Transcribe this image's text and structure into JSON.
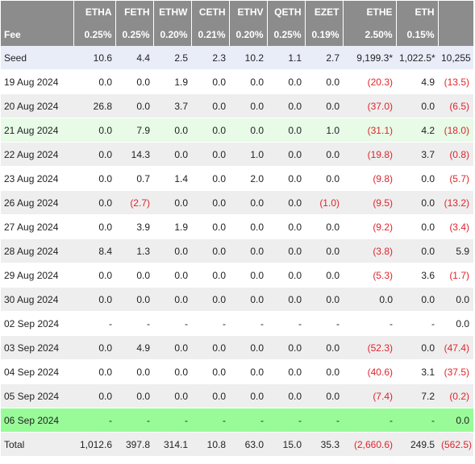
{
  "columns": [
    "",
    "ETHA",
    "FETH",
    "ETHW",
    "CETH",
    "ETHV",
    "QETH",
    "EZET",
    "ETHE",
    "ETH",
    ""
  ],
  "fee": [
    "Fee",
    "0.25%",
    "0.25%",
    "0.20%",
    "0.21%",
    "0.20%",
    "0.25%",
    "0.19%",
    "2.50%",
    "0.15%",
    ""
  ],
  "rows": [
    {
      "cells": [
        "Seed",
        "10.6",
        "4.4",
        "2.5",
        "2.3",
        "10.2",
        "1.1",
        "2.7",
        "9,199.3*",
        "1,022.5*",
        "10,255"
      ],
      "neg": [],
      "style": "seed"
    },
    {
      "cells": [
        "19 Aug 2024",
        "0.0",
        "0.0",
        "1.9",
        "0.0",
        "0.0",
        "0.0",
        "0.0",
        "(20.3)",
        "4.9",
        "(13.5)"
      ],
      "neg": [
        8,
        10
      ],
      "style": "odd"
    },
    {
      "cells": [
        "20 Aug 2024",
        "26.8",
        "0.0",
        "3.7",
        "0.0",
        "0.0",
        "0.0",
        "0.0",
        "(37.0)",
        "0.0",
        "(6.5)"
      ],
      "neg": [
        8,
        10
      ],
      "style": "even"
    },
    {
      "cells": [
        "21 Aug 2024",
        "0.0",
        "7.9",
        "0.0",
        "0.0",
        "0.0",
        "0.0",
        "1.0",
        "(31.1)",
        "4.2",
        "(18.0)"
      ],
      "neg": [
        8,
        10
      ],
      "style": "hl-light"
    },
    {
      "cells": [
        "22 Aug 2024",
        "0.0",
        "14.3",
        "0.0",
        "0.0",
        "1.0",
        "0.0",
        "0.0",
        "(19.8)",
        "3.7",
        "(0.8)"
      ],
      "neg": [
        8,
        10
      ],
      "style": "even"
    },
    {
      "cells": [
        "23 Aug 2024",
        "0.0",
        "0.7",
        "1.4",
        "0.0",
        "2.0",
        "0.0",
        "0.0",
        "(9.8)",
        "0.0",
        "(5.7)"
      ],
      "neg": [
        8,
        10
      ],
      "style": "odd"
    },
    {
      "cells": [
        "26 Aug 2024",
        "0.0",
        "(2.7)",
        "0.0",
        "0.0",
        "0.0",
        "0.0",
        "(1.0)",
        "(9.5)",
        "0.0",
        "(13.2)"
      ],
      "neg": [
        2,
        7,
        8,
        10
      ],
      "style": "even"
    },
    {
      "cells": [
        "27 Aug 2024",
        "0.0",
        "3.9",
        "1.9",
        "0.0",
        "0.0",
        "0.0",
        "0.0",
        "(9.2)",
        "0.0",
        "(3.4)"
      ],
      "neg": [
        8,
        10
      ],
      "style": "odd"
    },
    {
      "cells": [
        "28 Aug 2024",
        "8.4",
        "1.3",
        "0.0",
        "0.0",
        "0.0",
        "0.0",
        "0.0",
        "(3.8)",
        "0.0",
        "5.9"
      ],
      "neg": [
        8
      ],
      "style": "even"
    },
    {
      "cells": [
        "29 Aug 2024",
        "0.0",
        "0.0",
        "0.0",
        "0.0",
        "0.0",
        "0.0",
        "0.0",
        "(5.3)",
        "3.6",
        "(1.7)"
      ],
      "neg": [
        8,
        10
      ],
      "style": "odd"
    },
    {
      "cells": [
        "30 Aug 2024",
        "0.0",
        "0.0",
        "0.0",
        "0.0",
        "0.0",
        "0.0",
        "0.0",
        "0.0",
        "0.0",
        "0.0"
      ],
      "neg": [],
      "style": "even"
    },
    {
      "cells": [
        "02 Sep 2024",
        "-",
        "-",
        "-",
        "-",
        "-",
        "-",
        "-",
        "-",
        "-",
        "0.0"
      ],
      "neg": [],
      "style": "odd"
    },
    {
      "cells": [
        "03 Sep 2024",
        "0.0",
        "4.9",
        "0.0",
        "0.0",
        "0.0",
        "0.0",
        "0.0",
        "(52.3)",
        "0.0",
        "(47.4)"
      ],
      "neg": [
        8,
        10
      ],
      "style": "even"
    },
    {
      "cells": [
        "04 Sep 2024",
        "0.0",
        "0.0",
        "0.0",
        "0.0",
        "0.0",
        "0.0",
        "0.0",
        "(40.6)",
        "3.1",
        "(37.5)"
      ],
      "neg": [
        8,
        10
      ],
      "style": "odd"
    },
    {
      "cells": [
        "05 Sep 2024",
        "0.0",
        "0.0",
        "0.0",
        "0.0",
        "0.0",
        "0.0",
        "0.0",
        "(7.4)",
        "7.2",
        "(0.2)"
      ],
      "neg": [
        8,
        10
      ],
      "style": "even"
    },
    {
      "cells": [
        "06 Sep 2024",
        "-",
        "-",
        "-",
        "-",
        "-",
        "-",
        "-",
        "-",
        "-",
        "0.0"
      ],
      "neg": [],
      "style": "hl-green"
    },
    {
      "cells": [
        "Total",
        "1,012.6",
        "397.8",
        "314.1",
        "10.8",
        "63.0",
        "15.0",
        "35.3",
        "(2,660.6)",
        "249.5",
        "(562.5)"
      ],
      "neg": [
        8,
        10
      ],
      "style": "total"
    }
  ],
  "colors": {
    "header_bg": "#8c8c8c",
    "negative": "#e0242b",
    "seed_bg": "#e9edf8",
    "highlight_light": "#e7fbe7",
    "highlight_green": "#98fb98"
  }
}
